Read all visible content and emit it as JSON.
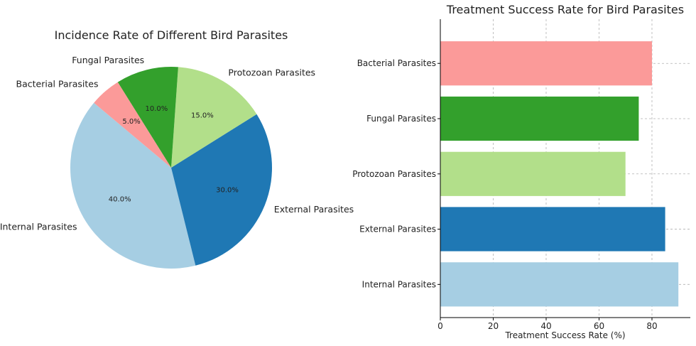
{
  "chart_data": [
    {
      "type": "pie",
      "title": "Incidence Rate of Different Bird Parasites",
      "categories": [
        "Internal Parasites",
        "External Parasites",
        "Protozoan Parasites",
        "Fungal Parasites",
        "Bacterial Parasites"
      ],
      "values": [
        40,
        30,
        15,
        10,
        5
      ],
      "value_labels": [
        "40.0%",
        "30.0%",
        "15.0%",
        "10.0%",
        "5.0%"
      ],
      "colors": [
        "#a6cee3",
        "#1f78b4",
        "#b2df8a",
        "#33a02c",
        "#fb9a99"
      ],
      "start_angle_deg": 140,
      "direction": "counterclockwise"
    },
    {
      "type": "bar",
      "orientation": "horizontal",
      "title": "Treatment Success Rate for Bird Parasites",
      "categories": [
        "Internal Parasites",
        "External Parasites",
        "Protozoan Parasites",
        "Fungal Parasites",
        "Bacterial Parasites"
      ],
      "values": [
        90,
        85,
        70,
        75,
        80
      ],
      "colors": [
        "#a6cee3",
        "#1f78b4",
        "#b2df8a",
        "#33a02c",
        "#fb9a99"
      ],
      "xlabel": "Treatment Success Rate (%)",
      "ylabel": "",
      "xlim": [
        0,
        94.5
      ],
      "xticks": [
        0,
        20,
        40,
        60,
        80
      ],
      "grid": true
    }
  ]
}
